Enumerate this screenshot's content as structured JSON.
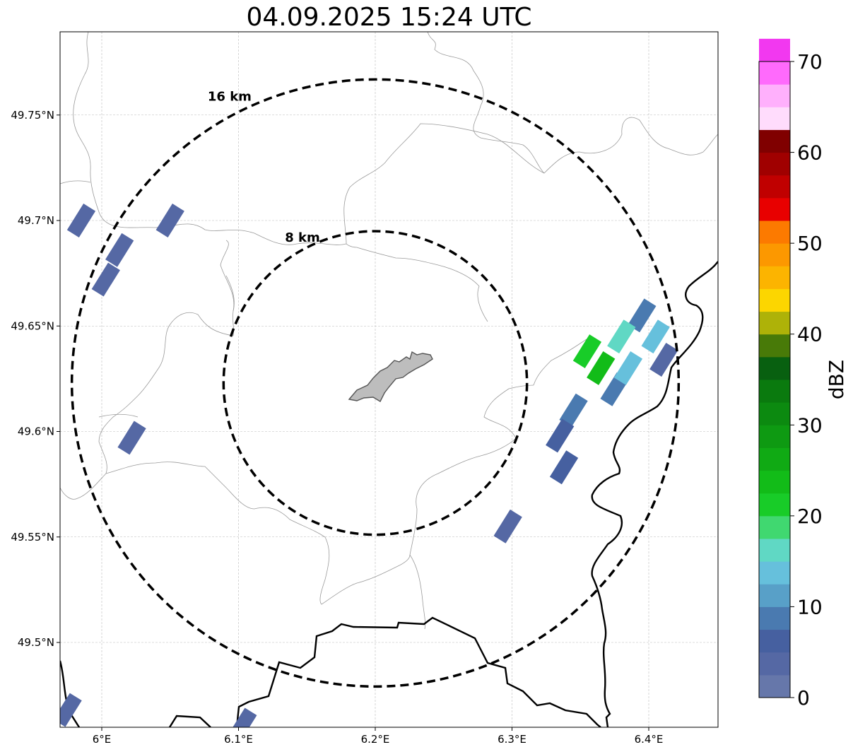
{
  "title": "04.09.2025 15:24 UTC",
  "map": {
    "lon_ticks": [
      {
        "value": 6.0,
        "label": "6°E"
      },
      {
        "value": 6.1,
        "label": "6.1°E"
      },
      {
        "value": 6.2,
        "label": "6.2°E"
      },
      {
        "value": 6.3,
        "label": "6.3°E"
      },
      {
        "value": 6.4,
        "label": "6.4°E"
      }
    ],
    "lat_ticks": [
      {
        "value": 49.75,
        "label": "49.75°N"
      },
      {
        "value": 49.7,
        "label": "49.7°N"
      },
      {
        "value": 49.65,
        "label": "49.65°N"
      },
      {
        "value": 49.6,
        "label": "49.6°N"
      },
      {
        "value": 49.55,
        "label": "49.55°N"
      },
      {
        "value": 49.5,
        "label": "49.5°N"
      }
    ],
    "extent": {
      "lon_min": 5.97,
      "lon_max": 6.45,
      "lat_min": 49.46,
      "lat_max": 49.79
    },
    "rings": [
      {
        "label": "8 km",
        "radius_km": 8
      },
      {
        "label": "16 km",
        "radius_km": 16
      }
    ],
    "radar_center": {
      "lon": 6.2,
      "lat": 49.623
    },
    "colors": {
      "border": "#000000",
      "admin": "#9a9a9a",
      "grid": "#bbbbbb",
      "city": "#bdbdbd"
    }
  },
  "colorbar": {
    "label": "dBZ",
    "ticks": [
      "0",
      "10",
      "20",
      "30",
      "40",
      "50",
      "60",
      "70"
    ],
    "min": 0,
    "max": 70,
    "step": 2.5,
    "colors": [
      "#6677aa",
      "#5568a4",
      "#4660a0",
      "#4a7ab0",
      "#58a0c8",
      "#66c0dc",
      "#60d8c4",
      "#40d870",
      "#18cc28",
      "#12bc18",
      "#10aa14",
      "#0e9a12",
      "#0c8a10",
      "#0a7a0e",
      "#086010",
      "#487a08",
      "#aeb208",
      "#fcd600",
      "#fcb400",
      "#fc9800",
      "#fc7a00",
      "#e80000",
      "#c00000",
      "#a00000",
      "#800000",
      "#ffdcfc",
      "#ffb0fc",
      "#ff6afc",
      "#f238f0"
    ]
  },
  "cells": [
    {
      "lon": 6.375,
      "lat": 49.62,
      "dbz": 7.5
    },
    {
      "lon": 6.385,
      "lat": 49.63,
      "dbz": 12.5
    },
    {
      "lon": 6.365,
      "lat": 49.63,
      "dbz": 22.5
    },
    {
      "lon": 6.355,
      "lat": 49.638,
      "dbz": 20
    },
    {
      "lon": 6.345,
      "lat": 49.61,
      "dbz": 7.5
    },
    {
      "lon": 6.395,
      "lat": 49.655,
      "dbz": 7.5
    },
    {
      "lon": 6.405,
      "lat": 49.645,
      "dbz": 12.5
    },
    {
      "lon": 6.38,
      "lat": 49.645,
      "dbz": 15
    },
    {
      "lon": 6.335,
      "lat": 49.598,
      "dbz": 5
    },
    {
      "lon": 6.338,
      "lat": 49.583,
      "dbz": 5
    },
    {
      "lon": 6.022,
      "lat": 49.597,
      "dbz": 2.5
    },
    {
      "lon": 6.05,
      "lat": 49.7,
      "dbz": 2.5
    },
    {
      "lon": 5.985,
      "lat": 49.7,
      "dbz": 2.5
    },
    {
      "lon": 6.013,
      "lat": 49.686,
      "dbz": 2.5
    },
    {
      "lon": 6.003,
      "lat": 49.672,
      "dbz": 2.5
    },
    {
      "lon": 6.297,
      "lat": 49.555,
      "dbz": 2.5
    },
    {
      "lon": 6.411,
      "lat": 49.634,
      "dbz": 2.5
    },
    {
      "lon": 5.975,
      "lat": 49.468,
      "dbz": 2.5
    },
    {
      "lon": 6.103,
      "lat": 49.461,
      "dbz": 2.5
    }
  ]
}
